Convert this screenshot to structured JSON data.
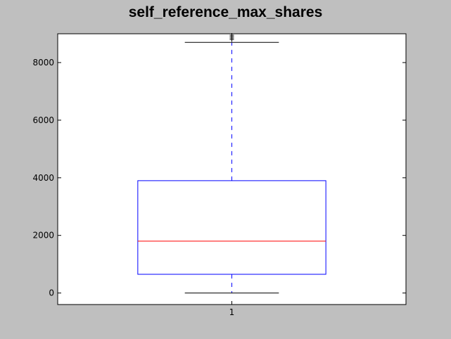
{
  "chart_data": {
    "type": "box",
    "title": "self_reference_max_shares",
    "xlabel": "",
    "ylabel": "",
    "categories": [
      "1"
    ],
    "ylim": [
      -400,
      9000
    ],
    "yticks": [
      0,
      2000,
      4000,
      6000,
      8000
    ],
    "box": {
      "whisker_low": 0,
      "q1": 650,
      "median": 1800,
      "q3": 3900,
      "whisker_high": 8700,
      "outliers": [
        8800,
        8850,
        8900,
        8950
      ]
    },
    "grid": false,
    "colors": {
      "box": "#0000ff",
      "median": "#ff0000",
      "whisker": "#0000ff",
      "cap": "#000000",
      "background": "#bfbfbf",
      "plot_background": "#ffffff"
    }
  }
}
